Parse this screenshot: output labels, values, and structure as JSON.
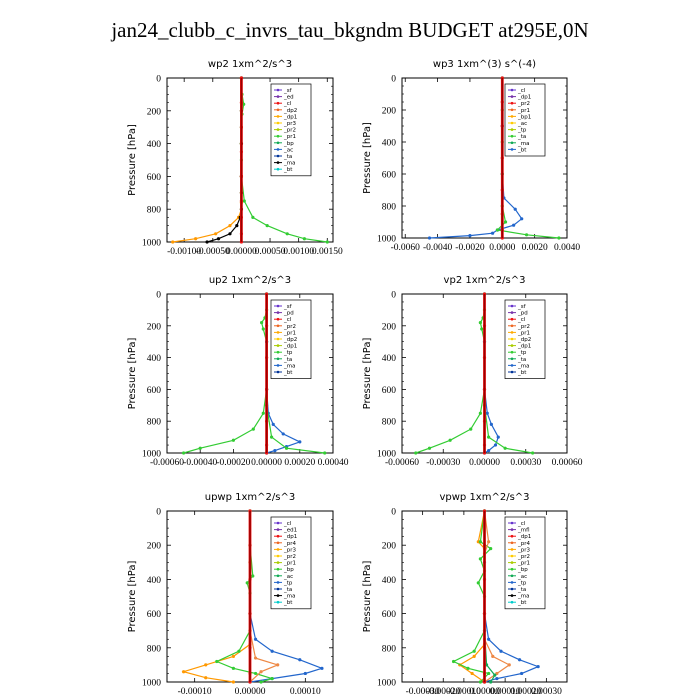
{
  "figure_title": "jan24_clubb_c_invrs_tau_bkgndm  BUDGET at295E,0N",
  "chart_data": [
    {
      "type": "line",
      "title": "wp2   1xm^2/s^3",
      "ylabel": "Pressure [hPa]",
      "xlim": [
        -0.0013,
        0.0016
      ],
      "ylim": [
        1000,
        0
      ],
      "x_ticks": [
        -0.001,
        -0.0005,
        0.0,
        0.0005,
        0.001,
        0.0015
      ],
      "x_tick_labels": [
        "-0.00100",
        "-0.00050",
        "0.00000",
        "0.00050",
        "0.00100",
        "0.00150"
      ],
      "y_ticks": [
        0,
        200,
        400,
        600,
        800,
        1000
      ],
      "legend_position": "top-right",
      "legend": [
        "_sf",
        "_ed",
        "_cl",
        "_dp2",
        "_dp1",
        "_pr3",
        "_pr2",
        "_pr1",
        "_bp",
        "_ac",
        "_ta",
        "_ma",
        "_bt"
      ],
      "series": [
        {
          "name": "_bp",
          "color": "#33cc33",
          "x": [
            0,
            1e-05,
            4e-05,
            1e-05,
            0,
            0,
            0,
            0,
            5e-05,
            0.0002,
            0.00045,
            0.0008,
            0.0011,
            0.0015
          ],
          "y": [
            0,
            100,
            160,
            220,
            300,
            400,
            500,
            600,
            750,
            850,
            900,
            950,
            980,
            1000
          ]
        },
        {
          "name": "_pr1",
          "color": "#ff9900",
          "x": [
            0,
            0,
            0,
            0,
            0,
            0,
            0,
            -5e-05,
            -0.0002,
            -0.00045,
            -0.0008,
            -0.0012
          ],
          "y": [
            0,
            200,
            400,
            600,
            700,
            760,
            800,
            850,
            900,
            950,
            980,
            1000
          ]
        },
        {
          "name": "_ta",
          "color": "#000000",
          "x": [
            0,
            0,
            0,
            0,
            0,
            0,
            -2e-05,
            -8e-05,
            -0.0002,
            -0.0004,
            -0.0006
          ],
          "y": [
            0,
            200,
            400,
            600,
            700,
            800,
            850,
            900,
            950,
            980,
            1000
          ]
        },
        {
          "name": "_cl",
          "color": "#ee1111",
          "x": [
            0,
            0,
            0,
            0,
            0,
            0,
            0,
            0,
            0
          ],
          "y": [
            0,
            150,
            300,
            450,
            600,
            750,
            850,
            950,
            1000
          ]
        }
      ]
    },
    {
      "type": "line",
      "title": "wp3   1xm^(3) s^(-4)",
      "ylabel": "Pressure [hPa]",
      "xlim": [
        -0.0062,
        0.004
      ],
      "ylim": [
        1000,
        0
      ],
      "x_ticks": [
        -0.006,
        -0.004,
        -0.002,
        0.0,
        0.002,
        0.004
      ],
      "x_tick_labels": [
        "-0.0060",
        "-0.0040",
        "-0.0020",
        "0.0000",
        "0.0020",
        "0.0040"
      ],
      "y_ticks": [
        0,
        200,
        400,
        600,
        800,
        1000
      ],
      "legend_position": "top-right",
      "legend": [
        "_cl",
        "_dp1",
        "_pr2",
        "_pr1",
        "_bp1",
        "_ac",
        "_tp",
        "_ta",
        "_ma",
        "_bt"
      ],
      "series": [
        {
          "name": "_tp",
          "color": "#2266cc",
          "x": [
            0,
            0,
            0,
            0.0001,
            0.0008,
            0.0012,
            0.0007,
            -0.0003,
            -0.0006,
            -0.002,
            -0.0045
          ],
          "y": [
            0,
            300,
            600,
            750,
            820,
            880,
            920,
            950,
            970,
            985,
            1000
          ]
        },
        {
          "name": "_ac",
          "color": "#33cc33",
          "x": [
            0,
            0,
            0,
            0,
            0,
            0.0002,
            -0.0003,
            0.0015,
            0.0035
          ],
          "y": [
            0,
            200,
            400,
            600,
            800,
            900,
            950,
            980,
            1000
          ]
        },
        {
          "name": "_cl",
          "color": "#ee1111",
          "x": [
            0,
            0,
            0,
            0,
            0,
            0,
            0,
            0
          ],
          "y": [
            0,
            150,
            300,
            500,
            700,
            850,
            950,
            1000
          ]
        }
      ]
    },
    {
      "type": "line",
      "title": "up2   1xm^2/s^3",
      "ylabel": "Pressure [hPa]",
      "xlim": [
        -0.0006,
        0.0004
      ],
      "ylim": [
        1000,
        0
      ],
      "x_ticks": [
        -0.0006,
        -0.0004,
        -0.0002,
        0.0,
        0.0002,
        0.0004
      ],
      "x_tick_labels": [
        "-0.00060",
        "-0.00040",
        "-0.00020",
        "0.00000",
        "0.00020",
        "0.00040"
      ],
      "y_ticks": [
        0,
        200,
        400,
        600,
        800,
        1000
      ],
      "legend_position": "top-right",
      "legend": [
        "_sf",
        "_pd",
        "_cl",
        "_pr2",
        "_pr1",
        "_dp2",
        "_dp1",
        "_tp",
        "_ta",
        "_ma",
        "_bt"
      ],
      "series": [
        {
          "name": "_dp1",
          "color": "#33cc33",
          "x": [
            0,
            0,
            -1e-05,
            -3e-05,
            -2e-05,
            0,
            0,
            -2e-05,
            -8e-05,
            -0.0002,
            -0.0004,
            -0.0005
          ],
          "y": [
            0,
            100,
            150,
            180,
            220,
            300,
            600,
            750,
            850,
            920,
            970,
            1000
          ]
        },
        {
          "name": "_tp",
          "color": "#2266cc",
          "x": [
            0,
            0,
            0,
            1e-05,
            4e-05,
            0.0001,
            0.0002,
            0.00012,
            5e-05,
            0
          ],
          "y": [
            0,
            300,
            600,
            750,
            820,
            880,
            930,
            960,
            985,
            1000
          ]
        },
        {
          "name": "_ac",
          "color": "#33cc33",
          "x": [
            0,
            0,
            3e-05,
            0.00012,
            0.00035
          ],
          "y": [
            0,
            700,
            900,
            970,
            1000
          ]
        },
        {
          "name": "_cl",
          "color": "#ee1111",
          "x": [
            0,
            0,
            0,
            0,
            0,
            0,
            0
          ],
          "y": [
            0,
            200,
            400,
            600,
            800,
            950,
            1000
          ]
        }
      ]
    },
    {
      "type": "line",
      "title": "vp2   1xm^2/s^3",
      "ylabel": "Pressure [hPa]",
      "xlim": [
        -0.0006,
        0.0006
      ],
      "ylim": [
        1000,
        0
      ],
      "x_ticks": [
        -0.0006,
        -0.0003,
        0.0,
        0.0003,
        0.0006
      ],
      "x_tick_labels": [
        "-0.00060",
        "-0.00030",
        "0.00000",
        "0.00030",
        "0.00060"
      ],
      "y_ticks": [
        0,
        200,
        400,
        600,
        800,
        1000
      ],
      "legend_position": "top-right",
      "legend": [
        "_sf",
        "_pd",
        "_cl",
        "_pr2",
        "_pr1",
        "_dp2",
        "_dp1",
        "_tp",
        "_ta",
        "_ma",
        "_bt"
      ],
      "series": [
        {
          "name": "_dp1",
          "color": "#33cc33",
          "x": [
            0,
            0,
            -1e-05,
            -3e-05,
            -2e-05,
            0,
            0,
            -3e-05,
            -0.0001,
            -0.00025,
            -0.0004,
            -0.0005
          ],
          "y": [
            0,
            100,
            150,
            180,
            220,
            300,
            600,
            750,
            850,
            920,
            970,
            1000
          ]
        },
        {
          "name": "_tp",
          "color": "#2266cc",
          "x": [
            0,
            0,
            0,
            2e-05,
            5e-05,
            0.0001,
            8e-05,
            3e-05,
            0
          ],
          "y": [
            0,
            300,
            600,
            750,
            820,
            900,
            950,
            985,
            1000
          ]
        },
        {
          "name": "_ac",
          "color": "#33cc33",
          "x": [
            0,
            0,
            3e-05,
            0.00015,
            0.00035
          ],
          "y": [
            0,
            700,
            900,
            970,
            1000
          ]
        },
        {
          "name": "_cl",
          "color": "#ee1111",
          "x": [
            0,
            0,
            0,
            0,
            0,
            0,
            0
          ],
          "y": [
            0,
            200,
            400,
            600,
            800,
            950,
            1000
          ]
        }
      ]
    },
    {
      "type": "line",
      "title": "upwp   1xm^2/s^3",
      "ylabel": "Pressure [hPa]",
      "xlim": [
        -0.00015,
        0.00015
      ],
      "ylim": [
        1000,
        0
      ],
      "x_ticks": [
        -0.0001,
        0.0,
        0.0001
      ],
      "x_tick_labels": [
        "-0.00010",
        "0.00000",
        "0.00010"
      ],
      "y_ticks": [
        0,
        200,
        400,
        600,
        800,
        1000
      ],
      "legend_position": "top-right",
      "legend": [
        "_cl",
        "_ed1",
        "_dp1",
        "_pr4",
        "_pr3",
        "_pr2",
        "_pr1",
        "_bp",
        "_ac",
        "_tp",
        "_ta",
        "_ma",
        "_bt"
      ],
      "series": [
        {
          "name": "_tp",
          "color": "#2266cc",
          "x": [
            0,
            0,
            0,
            1e-05,
            4e-05,
            9e-05,
            0.00013,
            0.0001,
            4e-05,
            0
          ],
          "y": [
            0,
            300,
            600,
            750,
            820,
            870,
            920,
            950,
            980,
            1000
          ]
        },
        {
          "name": "_pr1",
          "color": "#ff9900",
          "x": [
            0,
            0,
            0,
            0,
            -3e-05,
            -8e-05,
            -0.00012,
            -8e-05,
            -3e-05
          ],
          "y": [
            0,
            300,
            600,
            780,
            850,
            900,
            940,
            975,
            1000
          ]
        },
        {
          "name": "_bp",
          "color": "#33cc33",
          "x": [
            0,
            0,
            5e-06,
            -5e-06,
            0,
            0,
            -2e-05,
            -6e-05,
            -3e-05,
            1e-05,
            4e-05,
            2e-05
          ],
          "y": [
            0,
            200,
            380,
            420,
            480,
            700,
            820,
            880,
            920,
            950,
            980,
            1000
          ]
        },
        {
          "name": "_pr2",
          "color": "#ee8844",
          "x": [
            0,
            0,
            1e-05,
            5e-05,
            2e-05,
            0
          ],
          "y": [
            0,
            700,
            860,
            900,
            940,
            1000
          ]
        },
        {
          "name": "_cl",
          "color": "#ee1111",
          "x": [
            0,
            0,
            0,
            0,
            0,
            0,
            0
          ],
          "y": [
            0,
            200,
            400,
            600,
            800,
            950,
            1000
          ]
        }
      ]
    },
    {
      "type": "line",
      "title": "vpwp   1xm^2/s^3",
      "ylabel": "Pressure [hPa]",
      "xlim": [
        -0.0004,
        0.0004
      ],
      "ylim": [
        1000,
        0
      ],
      "x_ticks": [
        -0.0003,
        -0.0002,
        -0.0001,
        0.0,
        0.0001,
        0.0002,
        0.0003
      ],
      "x_tick_labels": [
        "-0.00030",
        "-0.00020",
        "-0.00010",
        "0.00000",
        "0.00010",
        "0.00020",
        "0.00030"
      ],
      "y_ticks": [
        0,
        200,
        400,
        600,
        800,
        1000
      ],
      "legend_position": "top-right",
      "legend": [
        "_cl",
        "_mfl",
        "_dp1",
        "_pr4",
        "_pr3",
        "_pr2",
        "_pr1",
        "_bp",
        "_ac",
        "_tp",
        "_ta",
        "_ma",
        "_bt"
      ],
      "series": [
        {
          "name": "_tp",
          "color": "#2266cc",
          "x": [
            0,
            0,
            0,
            2e-05,
            8e-05,
            0.00017,
            0.00026,
            0.00018,
            6e-05,
            0
          ],
          "y": [
            0,
            300,
            600,
            750,
            820,
            870,
            910,
            950,
            980,
            1000
          ]
        },
        {
          "name": "_pr1",
          "color": "#ff9900",
          "x": [
            0,
            -3e-05,
            0,
            0,
            0,
            -5e-05,
            -0.00012,
            -6e-05,
            0
          ],
          "y": [
            0,
            180,
            220,
            600,
            780,
            850,
            900,
            950,
            1000
          ]
        },
        {
          "name": "_bp",
          "color": "#33cc33",
          "x": [
            0,
            -2e-05,
            3e-05,
            -2e-05,
            0,
            -3e-05,
            0,
            0,
            -5e-05,
            -0.00015,
            -8e-05,
            2e-05,
            -2e-05
          ],
          "y": [
            0,
            180,
            220,
            280,
            350,
            420,
            500,
            700,
            820,
            880,
            920,
            950,
            1000
          ]
        },
        {
          "name": "_pr2",
          "color": "#ee8844",
          "x": [
            0,
            2e-05,
            0,
            0,
            4e-05,
            0.00012,
            6e-05,
            0
          ],
          "y": [
            0,
            180,
            250,
            750,
            850,
            900,
            950,
            1000
          ]
        },
        {
          "name": "_ac",
          "color": "#11aa55",
          "x": [
            0,
            0,
            1e-05,
            5e-05,
            3e-05
          ],
          "y": [
            0,
            700,
            900,
            960,
            1000
          ]
        },
        {
          "name": "_cl",
          "color": "#ee1111",
          "x": [
            0,
            0,
            0,
            0,
            0,
            0,
            0
          ],
          "y": [
            0,
            200,
            400,
            600,
            800,
            950,
            1000
          ]
        }
      ]
    }
  ]
}
